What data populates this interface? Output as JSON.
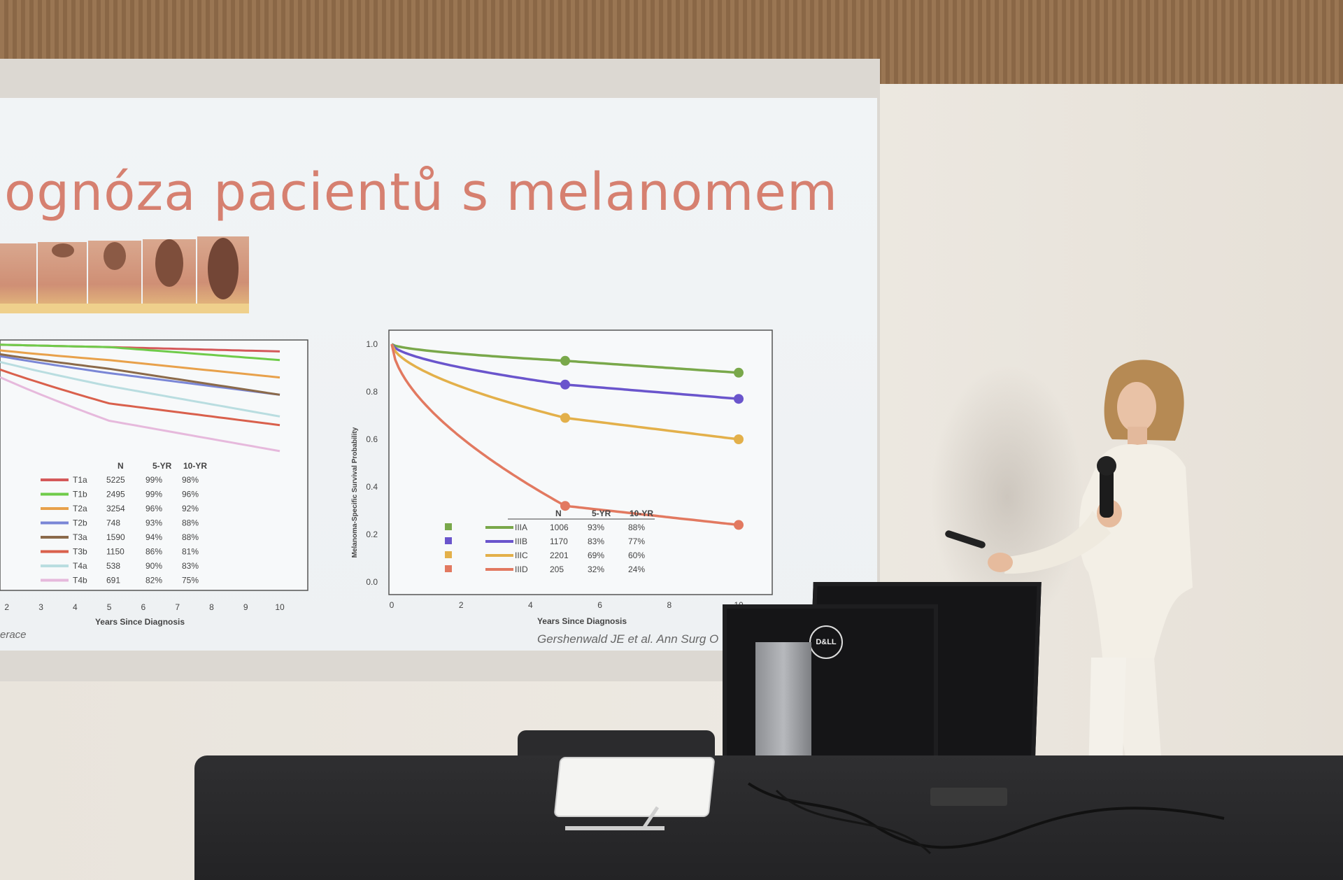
{
  "slide": {
    "title": "ognóza pacientů s melanomem",
    "left_chart": {
      "table_headers": [
        "N",
        "5-YR",
        "10-YR"
      ],
      "rows": [
        {
          "label": "T1a",
          "n": "5225",
          "y5": "99%",
          "y10": "98%",
          "color": "#d4595a"
        },
        {
          "label": "T1b",
          "n": "2495",
          "y5": "99%",
          "y10": "96%",
          "color": "#6fcb4a"
        },
        {
          "label": "T2a",
          "n": "3254",
          "y5": "96%",
          "y10": "92%",
          "color": "#e8a14b"
        },
        {
          "label": "T2b",
          "n": "748",
          "y5": "93%",
          "y10": "88%",
          "color": "#7a86d6"
        },
        {
          "label": "T3a",
          "n": "1590",
          "y5": "94%",
          "y10": "88%",
          "color": "#8b6a4a"
        },
        {
          "label": "T3b",
          "n": "1150",
          "y5": "86%",
          "y10": "81%",
          "color": "#d9604c"
        },
        {
          "label": "T4a",
          "n": "538",
          "y5": "90%",
          "y10": "83%",
          "color": "#b9dde0"
        },
        {
          "label": "T4b",
          "n": "691",
          "y5": "82%",
          "y10": "75%",
          "color": "#e6b9dc"
        }
      ],
      "x_ticks": [
        "2",
        "3",
        "4",
        "5",
        "6",
        "7",
        "8",
        "9",
        "10"
      ],
      "xlabel": "Years Since Diagnosis",
      "footnote": "erace"
    },
    "right_chart": {
      "ylabel": "Melanoma-Specific Survival Probability",
      "xlabel": "Years Since Diagnosis",
      "y_ticks": [
        "1.0",
        "0.8",
        "0.6",
        "0.4",
        "0.2",
        "0.0"
      ],
      "x_ticks": [
        "0",
        "2",
        "4",
        "6",
        "8",
        "10"
      ],
      "table_headers": [
        "N",
        "5-YR",
        "10-YR"
      ],
      "rows": [
        {
          "label": "IIIA",
          "n": "1006",
          "y5": "93%",
          "y10": "88%",
          "color": "#79a84a"
        },
        {
          "label": "IIIB",
          "n": "1170",
          "y5": "83%",
          "y10": "77%",
          "color": "#6a55cc"
        },
        {
          "label": "IIIC",
          "n": "2201",
          "y5": "69%",
          "y10": "60%",
          "color": "#e3b04a"
        },
        {
          "label": "IIID",
          "n": "205",
          "y5": "32%",
          "y10": "24%",
          "color": "#e27960"
        }
      ],
      "citation": "Gershenwald JE et al. Ann Surg O"
    }
  },
  "desk": {
    "monitor_brand": "D&LL"
  }
}
